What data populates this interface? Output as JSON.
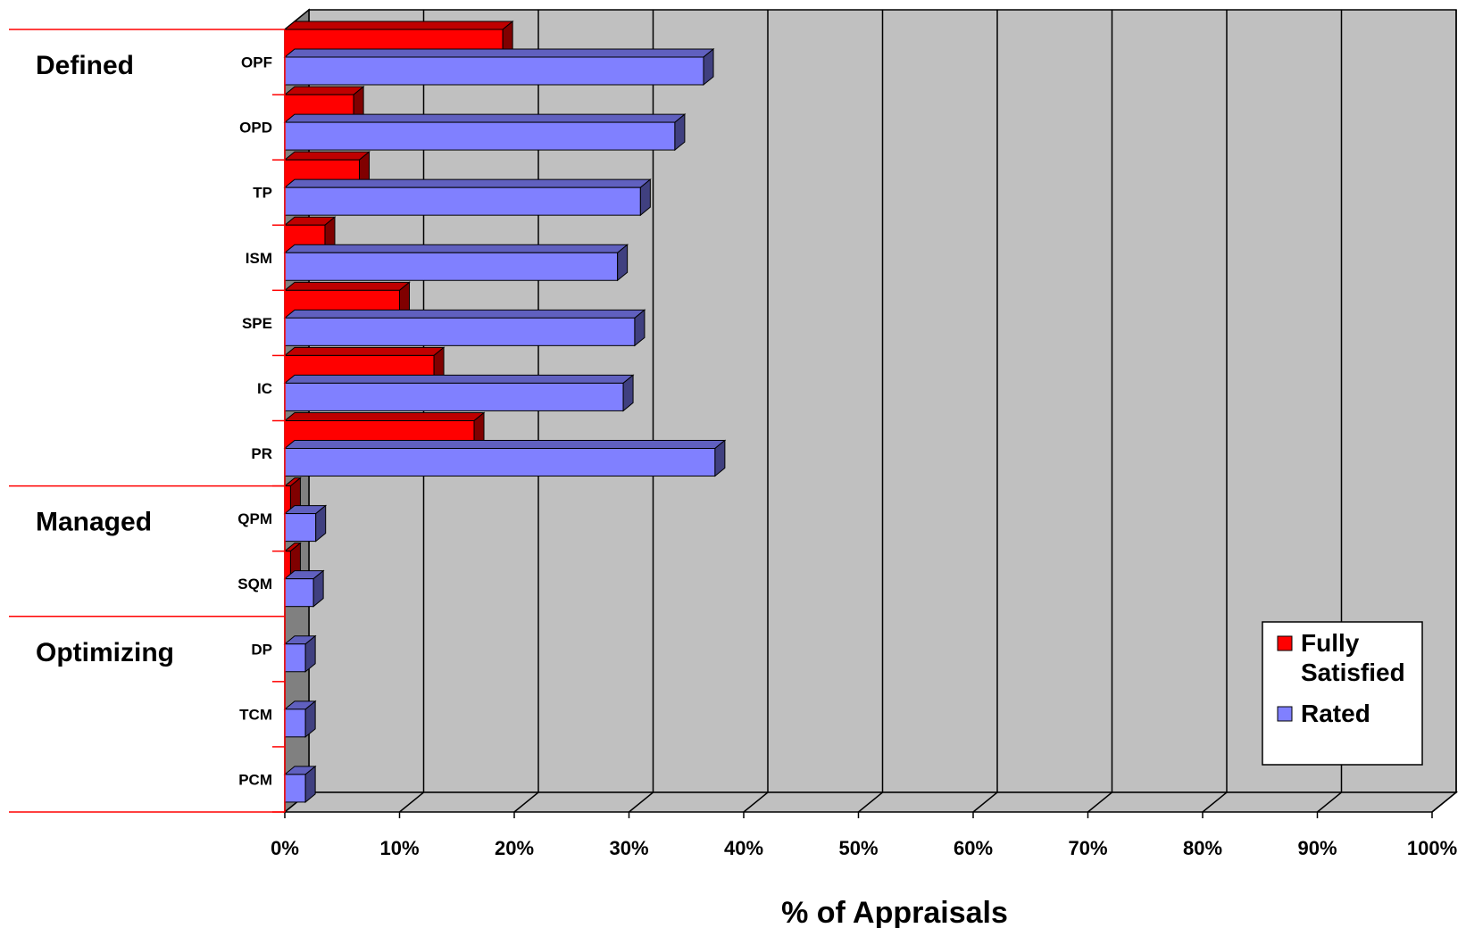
{
  "chart_data": {
    "type": "bar",
    "orientation": "horizontal",
    "style": "3d",
    "categories": [
      "OPF",
      "OPD",
      "TP",
      "ISM",
      "SPE",
      "IC",
      "PR",
      "QPM",
      "SQM",
      "DP",
      "TCM",
      "PCM"
    ],
    "groups": [
      {
        "name": "Defined",
        "categories": [
          "OPF",
          "OPD",
          "TP",
          "ISM",
          "SPE",
          "IC",
          "PR"
        ]
      },
      {
        "name": "Managed",
        "categories": [
          "QPM",
          "SQM"
        ]
      },
      {
        "name": "Optimizing",
        "categories": [
          "DP",
          "TCM",
          "PCM"
        ]
      }
    ],
    "series": [
      {
        "name": "Fully Satisfied",
        "color": "#ff0000",
        "values": [
          19,
          6,
          6.5,
          3.5,
          10,
          13,
          16.5,
          0.5,
          0.5,
          0,
          0,
          0
        ]
      },
      {
        "name": "Rated",
        "color": "#8080ff",
        "values": [
          36.5,
          34,
          31,
          29,
          30.5,
          29.5,
          37.5,
          2.7,
          2.5,
          1.8,
          1.8,
          1.8
        ]
      }
    ],
    "xlim": [
      0,
      100
    ],
    "ticks": [
      "0%",
      "10%",
      "20%",
      "30%",
      "40%",
      "50%",
      "60%",
      "70%",
      "80%",
      "90%",
      "100%"
    ],
    "xlabel": "% of Appraisals",
    "ylabel": "",
    "title": "",
    "legend": {
      "position": "bottom-right",
      "entries": [
        "Fully Satisfied",
        "Rated"
      ]
    },
    "colors": {
      "plot_background": "#c0c0c0",
      "side_wall": "#808080",
      "group_divider": "#ff0000",
      "gridline": "#000000"
    }
  }
}
